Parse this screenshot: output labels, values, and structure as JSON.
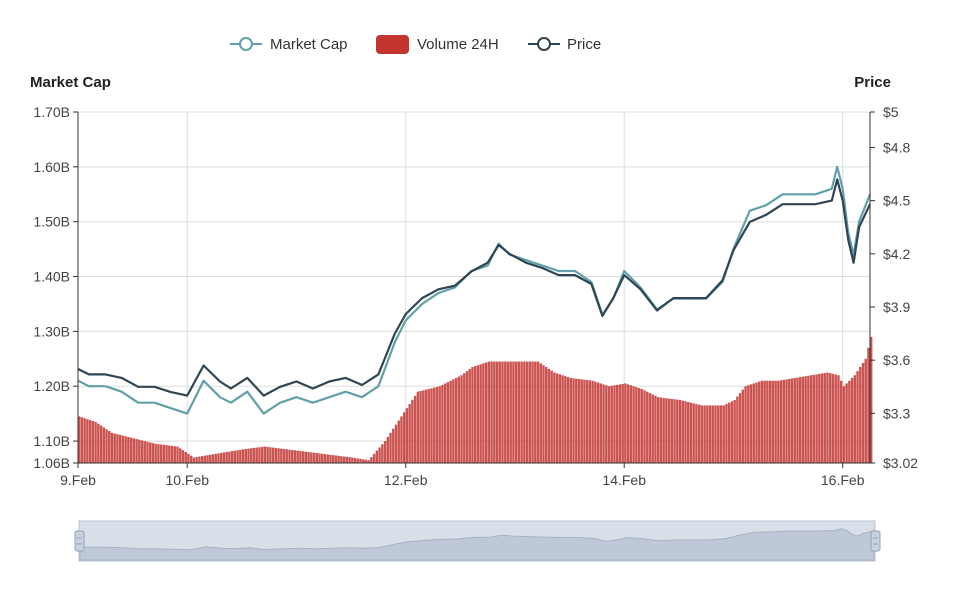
{
  "legend": {
    "market_cap": "Market Cap",
    "volume": "Volume 24H",
    "price": "Price"
  },
  "colors": {
    "market_cap": "#61a0a8",
    "price": "#2f4554",
    "volume": "#c23531",
    "grid": "#dddddd",
    "slider_fill": "#d9dfe8",
    "slider_border": "#b8c3d3"
  },
  "chart_data": {
    "type": "line",
    "title": "",
    "x_start": "9.Feb",
    "x_end": "16.Feb",
    "x_days": [
      9,
      16.25
    ],
    "xticks": [
      {
        "day": 9,
        "label": "9.Feb"
      },
      {
        "day": 10,
        "label": "10.Feb"
      },
      {
        "day": 12,
        "label": "12.Feb"
      },
      {
        "day": 14,
        "label": "14.Feb"
      },
      {
        "day": 16,
        "label": "16.Feb"
      }
    ],
    "left_axis": {
      "title": "Market Cap",
      "range": [
        1.06,
        1.7
      ],
      "ticks": [
        {
          "value": 1.06,
          "label": "1.06B"
        },
        {
          "value": 1.1,
          "label": "1.10B"
        },
        {
          "value": 1.2,
          "label": "1.20B"
        },
        {
          "value": 1.3,
          "label": "1.30B"
        },
        {
          "value": 1.4,
          "label": "1.40B"
        },
        {
          "value": 1.5,
          "label": "1.50B"
        },
        {
          "value": 1.6,
          "label": "1.60B"
        },
        {
          "value": 1.7,
          "label": "1.70B"
        }
      ]
    },
    "right_axis": {
      "title": "Price",
      "range": [
        3.02,
        5.0
      ],
      "ticks": [
        {
          "value": 3.02,
          "label": "$3.02"
        },
        {
          "value": 3.3,
          "label": "$3.3"
        },
        {
          "value": 3.6,
          "label": "$3.6"
        },
        {
          "value": 3.9,
          "label": "$3.9"
        },
        {
          "value": 4.2,
          "label": "$4.2"
        },
        {
          "value": 4.5,
          "label": "$4.5"
        },
        {
          "value": 4.8,
          "label": "$4.8"
        },
        {
          "value": 5.0,
          "label": "$5"
        }
      ]
    },
    "series": [
      {
        "name": "Market Cap",
        "axis": "left",
        "kind": "line",
        "x": [
          9.0,
          9.1,
          9.25,
          9.4,
          9.55,
          9.7,
          9.85,
          10.0,
          10.15,
          10.3,
          10.4,
          10.55,
          10.7,
          10.85,
          11.0,
          11.15,
          11.3,
          11.45,
          11.6,
          11.75,
          11.9,
          12.0,
          12.15,
          12.3,
          12.45,
          12.6,
          12.75,
          12.85,
          12.95,
          13.1,
          13.25,
          13.4,
          13.55,
          13.7,
          13.8,
          13.9,
          14.0,
          14.15,
          14.3,
          14.45,
          14.6,
          14.75,
          14.9,
          15.0,
          15.15,
          15.3,
          15.45,
          15.6,
          15.75,
          15.9,
          15.95,
          16.0,
          16.05,
          16.1,
          16.15,
          16.25
        ],
        "y": [
          1.21,
          1.2,
          1.2,
          1.19,
          1.17,
          1.17,
          1.16,
          1.15,
          1.21,
          1.18,
          1.17,
          1.19,
          1.15,
          1.17,
          1.18,
          1.17,
          1.18,
          1.19,
          1.18,
          1.2,
          1.28,
          1.32,
          1.35,
          1.37,
          1.38,
          1.41,
          1.42,
          1.46,
          1.44,
          1.43,
          1.42,
          1.41,
          1.41,
          1.39,
          1.33,
          1.36,
          1.41,
          1.38,
          1.34,
          1.36,
          1.36,
          1.36,
          1.39,
          1.45,
          1.52,
          1.53,
          1.55,
          1.55,
          1.55,
          1.56,
          1.6,
          1.56,
          1.48,
          1.44,
          1.5,
          1.55
        ]
      },
      {
        "name": "Price",
        "axis": "right",
        "kind": "line",
        "x": [
          9.0,
          9.1,
          9.25,
          9.4,
          9.55,
          9.7,
          9.85,
          10.0,
          10.15,
          10.3,
          10.4,
          10.55,
          10.7,
          10.85,
          11.0,
          11.15,
          11.3,
          11.45,
          11.6,
          11.75,
          11.9,
          12.0,
          12.15,
          12.3,
          12.45,
          12.6,
          12.75,
          12.85,
          12.95,
          13.1,
          13.25,
          13.4,
          13.55,
          13.7,
          13.8,
          13.9,
          14.0,
          14.15,
          14.3,
          14.45,
          14.6,
          14.75,
          14.9,
          15.0,
          15.15,
          15.3,
          15.45,
          15.6,
          15.75,
          15.9,
          15.95,
          16.0,
          16.05,
          16.1,
          16.15,
          16.25
        ],
        "y": [
          3.55,
          3.52,
          3.52,
          3.5,
          3.45,
          3.45,
          3.42,
          3.4,
          3.57,
          3.48,
          3.44,
          3.5,
          3.4,
          3.45,
          3.48,
          3.44,
          3.48,
          3.5,
          3.46,
          3.52,
          3.75,
          3.86,
          3.95,
          4.0,
          4.02,
          4.1,
          4.15,
          4.25,
          4.2,
          4.15,
          4.12,
          4.08,
          4.08,
          4.03,
          3.85,
          3.95,
          4.08,
          4.0,
          3.88,
          3.95,
          3.95,
          3.95,
          4.05,
          4.22,
          4.38,
          4.42,
          4.48,
          4.48,
          4.48,
          4.5,
          4.62,
          4.5,
          4.28,
          4.15,
          4.35,
          4.48
        ]
      },
      {
        "name": "Volume 24H",
        "axis": "left",
        "kind": "bar",
        "x": [
          9.0,
          9.15,
          9.3,
          9.5,
          9.7,
          9.9,
          10.05,
          10.2,
          10.35,
          10.5,
          10.7,
          10.9,
          11.1,
          11.3,
          11.5,
          11.65,
          11.8,
          11.95,
          12.1,
          12.3,
          12.5,
          12.6,
          12.75,
          12.9,
          13.05,
          13.2,
          13.35,
          13.5,
          13.7,
          13.85,
          14.0,
          14.15,
          14.3,
          14.5,
          14.7,
          14.9,
          15.0,
          15.1,
          15.25,
          15.4,
          15.55,
          15.7,
          15.85,
          15.95,
          16.0,
          16.1,
          16.2,
          16.25
        ],
        "y": [
          1.145,
          1.135,
          1.115,
          1.105,
          1.095,
          1.09,
          1.07,
          1.075,
          1.08,
          1.085,
          1.09,
          1.085,
          1.08,
          1.075,
          1.07,
          1.065,
          1.1,
          1.145,
          1.19,
          1.2,
          1.22,
          1.235,
          1.245,
          1.245,
          1.245,
          1.245,
          1.225,
          1.215,
          1.21,
          1.2,
          1.205,
          1.195,
          1.18,
          1.175,
          1.165,
          1.165,
          1.175,
          1.2,
          1.21,
          1.21,
          1.215,
          1.22,
          1.225,
          1.22,
          1.2,
          1.22,
          1.25,
          1.29
        ]
      }
    ]
  }
}
